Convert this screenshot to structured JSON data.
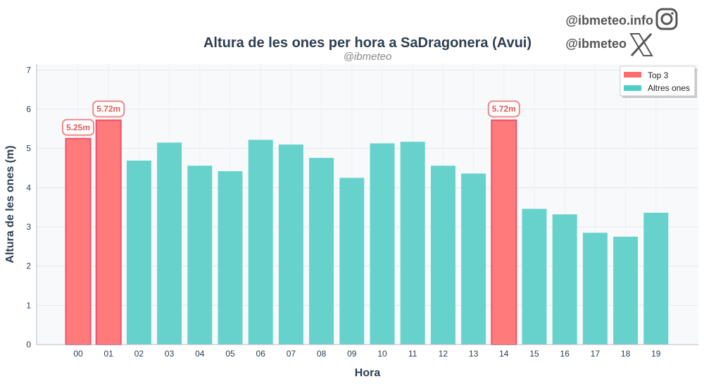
{
  "branding": {
    "instagram": "@ibmeteo.info",
    "x_handle": "@ibmeteo",
    "instagram_icon": "instagram-icon",
    "x_icon": "x-logo-icon"
  },
  "chart_data": {
    "type": "bar",
    "title": "Altura de les ones per hora a SaDragonera (Avui)",
    "subtitle": "@ibmeteo",
    "xlabel": "Hora",
    "ylabel": "Altura de les ones (m)",
    "ylim": [
      0,
      7.15
    ],
    "yticks": [
      "0",
      "1",
      "2",
      "3",
      "4",
      "5",
      "6",
      "7"
    ],
    "grid": true,
    "legend_position": "top-right",
    "categories": [
      "00",
      "01",
      "02",
      "03",
      "04",
      "05",
      "06",
      "07",
      "08",
      "09",
      "10",
      "11",
      "12",
      "13",
      "14",
      "15",
      "16",
      "17",
      "18",
      "19"
    ],
    "values": [
      5.25,
      5.72,
      4.69,
      5.15,
      4.56,
      4.42,
      5.22,
      5.1,
      4.76,
      4.25,
      5.13,
      5.17,
      4.56,
      4.36,
      5.72,
      3.46,
      3.32,
      2.85,
      2.75,
      3.36
    ],
    "top3": [
      0,
      1,
      14
    ],
    "data_labels": {
      "0": "5.25m",
      "1": "5.72m",
      "14": "5.72m"
    },
    "legend": [
      {
        "label": "Top 3",
        "color": "#ff6b6b"
      },
      {
        "label": "Altres ones",
        "color": "#4ecdc4"
      }
    ],
    "colors": {
      "top": "#ff7b7b",
      "top_edge": "#f0506a",
      "other": "#67d2cc",
      "label_text": "#e05a5a"
    }
  }
}
